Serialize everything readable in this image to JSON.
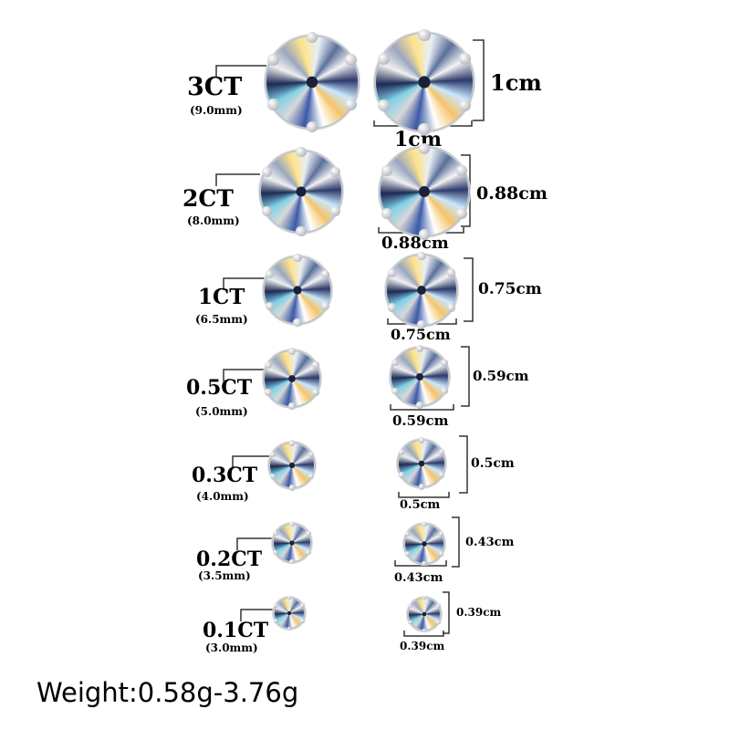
{
  "rows": [
    {
      "carat": "3CT",
      "mm": "(9.0mm)",
      "width": "1cm",
      "height": "1cm"
    },
    {
      "carat": "2CT",
      "mm": "(8.0mm)",
      "width": "0.88cm",
      "height": "0.88cm"
    },
    {
      "carat": "1CT",
      "mm": "(6.5mm)",
      "width": "0.75cm",
      "height": "0.75cm"
    },
    {
      "carat": "0.5CT",
      "mm": "(5.0mm)",
      "width": "0.59cm",
      "height": "0.59cm"
    },
    {
      "carat": "0.3CT",
      "mm": "(4.0mm)",
      "width": "0.5cm",
      "height": "0.5cm"
    },
    {
      "carat": "0.2CT",
      "mm": "(3.5mm)",
      "width": "0.43cm",
      "height": "0.43cm"
    },
    {
      "carat": "0.1CT",
      "mm": "(3.0mm)",
      "width": "0.39cm",
      "height": "0.39cm"
    }
  ],
  "weight_text": "Weight:0.58g-3.76g"
}
